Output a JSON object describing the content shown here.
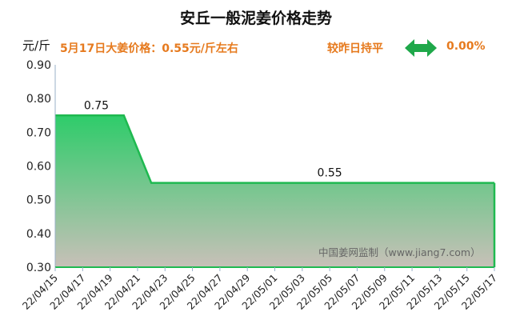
{
  "title": "安丘一般泥姜价格走势",
  "unit_label": "元/斤",
  "price_info": "5月17日大姜价格：0.55元/斤左右",
  "compare_label": "较昨日持平",
  "compare_pct": "0.00%",
  "trend_icon": "double-arrow-icon",
  "watermark": "中国姜网监制（www.jiang7.com）",
  "colors": {
    "accent": "#e67a1e",
    "line": "#1fb950",
    "fill_top": "#2ecc6a",
    "fill_bottom": "#c8c0b8"
  },
  "chart_data": {
    "type": "area",
    "x_ticks": [
      "22/04/15",
      "22/04/17",
      "22/04/19",
      "22/04/21",
      "22/04/23",
      "22/04/25",
      "22/04/27",
      "22/04/29",
      "22/05/01",
      "22/05/03",
      "22/05/05",
      "22/05/07",
      "22/05/09",
      "22/05/11",
      "22/05/13",
      "22/05/15",
      "22/05/17"
    ],
    "points": [
      {
        "x": "2022-04-15",
        "y": 0.75
      },
      {
        "x": "2022-04-20",
        "y": 0.75
      },
      {
        "x": "2022-04-22",
        "y": 0.55
      },
      {
        "x": "2022-05-17",
        "y": 0.55
      }
    ],
    "data_labels": [
      {
        "x": "2022-04-18",
        "y": 0.75,
        "text": "0.75"
      },
      {
        "x": "2022-05-05",
        "y": 0.55,
        "text": "0.55"
      }
    ],
    "x_range": [
      "2022-04-15",
      "2022-05-17"
    ],
    "ylim": [
      0.3,
      0.9
    ],
    "y_ticks": [
      "0.30",
      "0.40",
      "0.50",
      "0.60",
      "0.70",
      "0.80",
      "0.90"
    ],
    "grid": false
  }
}
